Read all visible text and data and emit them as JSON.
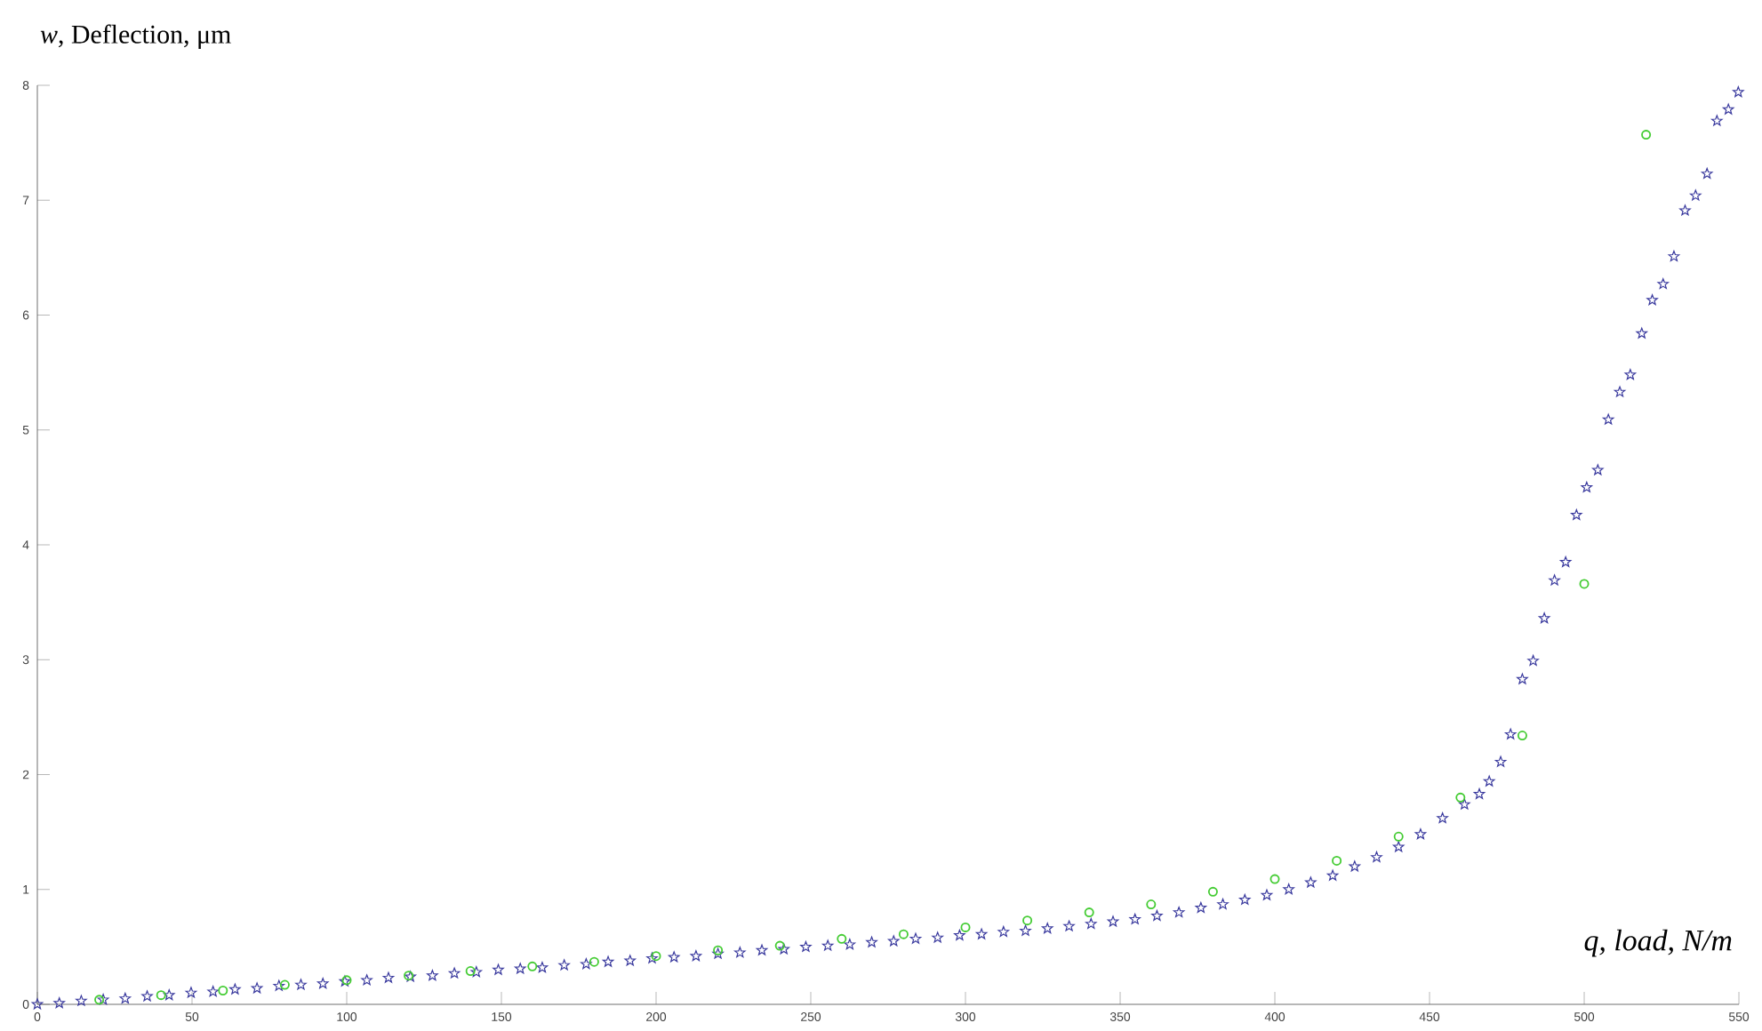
{
  "chart_data": {
    "type": "scatter",
    "xlabel": "q, load, N/m",
    "ylabel": "*w*, Deflection, μm",
    "xlim": [
      0,
      550
    ],
    "xticks": [
      0,
      50,
      100,
      150,
      200,
      250,
      300,
      350,
      400,
      450,
      500,
      550
    ],
    "ylim": [
      0,
      8
    ],
    "yticks": [
      0,
      1,
      2,
      3,
      4,
      5,
      6,
      7,
      8
    ],
    "series": [
      {
        "color": "#3a3a9e",
        "marker": "star",
        "x": [
          0,
          7.1,
          14.2,
          21.3,
          28.4,
          35.5,
          42.6,
          49.7,
          56.8,
          63.9,
          71.0,
          78.1,
          85.2,
          92.3,
          99.4,
          106.5,
          113.5,
          120.6,
          127.7,
          134.8,
          141.9,
          149.0,
          156.1,
          163.2,
          170.3,
          177.4,
          184.5,
          191.6,
          198.7,
          205.8,
          212.9,
          220.0,
          227.1,
          234.2,
          241.3,
          248.4,
          255.5,
          262.6,
          269.7,
          276.8,
          283.9,
          291.0,
          298.1,
          305.2,
          312.3,
          319.4,
          326.5,
          333.5,
          340.6,
          347.7,
          354.8,
          361.9,
          369.0,
          376.1,
          383.2,
          390.3,
          397.4,
          404.5,
          411.6,
          418.7,
          425.8,
          432.9,
          440.0,
          447.1,
          454.2,
          461.3,
          466.1,
          469.3,
          473.0,
          476.2,
          480.0,
          483.5,
          487.1,
          490.4,
          494.0,
          497.5,
          500.8,
          504.4,
          507.8,
          511.5,
          514.9,
          518.6,
          522.0,
          525.5,
          529.0,
          532.6,
          536.0,
          539.7,
          542.9,
          546.6,
          549.8
        ],
        "values": [
          0,
          0.01,
          0.03,
          0.04,
          0.05,
          0.07,
          0.08,
          0.1,
          0.11,
          0.13,
          0.14,
          0.16,
          0.17,
          0.18,
          0.2,
          0.21,
          0.23,
          0.24,
          0.25,
          0.27,
          0.28,
          0.3,
          0.31,
          0.32,
          0.34,
          0.35,
          0.37,
          0.38,
          0.4,
          0.41,
          0.42,
          0.44,
          0.45,
          0.47,
          0.48,
          0.5,
          0.51,
          0.52,
          0.54,
          0.55,
          0.57,
          0.58,
          0.6,
          0.61,
          0.63,
          0.64,
          0.66,
          0.68,
          0.7,
          0.72,
          0.74,
          0.77,
          0.8,
          0.84,
          0.87,
          0.91,
          0.95,
          1.0,
          1.06,
          1.12,
          1.2,
          1.28,
          1.37,
          1.48,
          1.62,
          1.74,
          1.83,
          1.94,
          2.11,
          2.35,
          2.83,
          2.99,
          3.36,
          3.69,
          3.85,
          4.26,
          4.5,
          4.65,
          5.09,
          5.33,
          5.48,
          5.84,
          6.13,
          6.27,
          6.51,
          6.91,
          7.04,
          7.23,
          7.69,
          7.79,
          7.94
        ]
      },
      {
        "color": "#44cc33",
        "marker": "circle",
        "x": [
          20,
          40,
          60,
          80,
          100,
          120,
          140,
          160,
          180,
          200,
          220,
          240,
          260,
          280,
          300,
          320,
          340,
          360,
          380,
          400,
          420,
          440,
          460,
          480,
          500,
          520
        ],
        "values": [
          0.04,
          0.08,
          0.12,
          0.17,
          0.21,
          0.25,
          0.29,
          0.33,
          0.37,
          0.42,
          0.47,
          0.51,
          0.57,
          0.61,
          0.67,
          0.73,
          0.8,
          0.87,
          0.98,
          1.09,
          1.25,
          1.46,
          1.8,
          2.34,
          3.66,
          7.57
        ]
      }
    ]
  }
}
